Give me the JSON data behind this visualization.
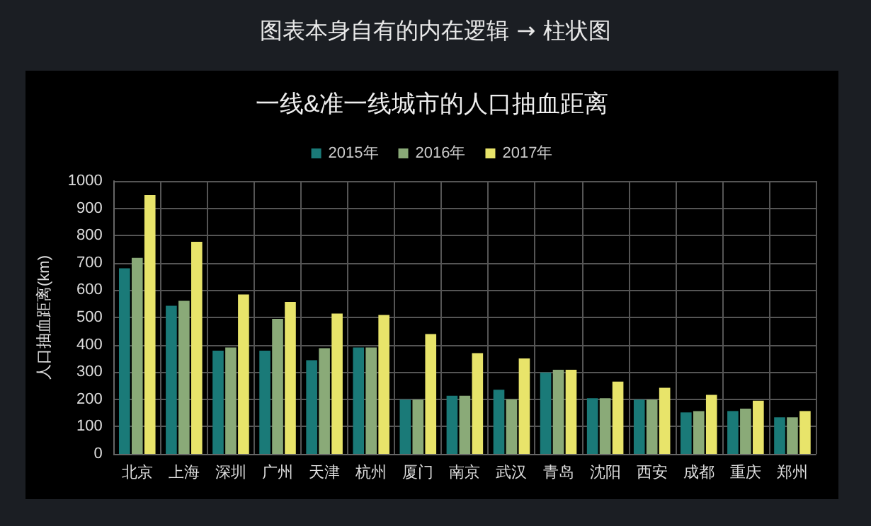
{
  "chart_data": {
    "type": "bar",
    "title": "一线&准一线城市的人口抽血距离",
    "ylabel": "人口抽血距离(km)",
    "annotations": [
      "图表本身自有的内在逻辑 → 柱状图"
    ],
    "categories": [
      "北京",
      "上海",
      "深圳",
      "广州",
      "天津",
      "杭州",
      "厦门",
      "南京",
      "武汉",
      "青岛",
      "沈阳",
      "西安",
      "成都",
      "重庆",
      "郑州"
    ],
    "series": [
      {
        "name": "2015年",
        "color": "#1a7a78",
        "values": [
          680,
          543,
          378,
          378,
          343,
          390,
          199,
          213,
          235,
          298,
          204,
          199,
          152,
          157,
          134
        ]
      },
      {
        "name": "2016年",
        "color": "#8aaa78",
        "values": [
          718,
          561,
          390,
          495,
          387,
          390,
          199,
          213,
          200,
          308,
          204,
          199,
          157,
          166,
          134
        ]
      },
      {
        "name": "2017年",
        "color": "#e8e46a",
        "values": [
          948,
          777,
          584,
          557,
          514,
          509,
          439,
          369,
          350,
          308,
          265,
          242,
          216,
          195,
          157
        ]
      }
    ],
    "ylim": [
      0,
      1000
    ],
    "yticks": [
      0,
      100,
      200,
      300,
      400,
      500,
      600,
      700,
      800,
      900,
      1000
    ],
    "grid": true,
    "legend": "top"
  }
}
